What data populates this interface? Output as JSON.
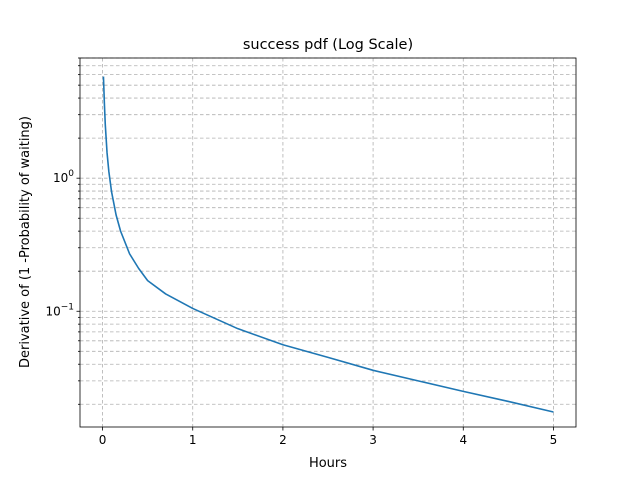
{
  "chart_data": {
    "type": "line",
    "title": "success pdf (Log Scale)",
    "xlabel": "Hours",
    "ylabel": "Derivative of (1 -Probability of waiting)",
    "xscale": "linear",
    "yscale": "log",
    "xlim": [
      -0.25,
      5.25
    ],
    "ylim": [
      0.0135,
      8.0
    ],
    "xticks": [
      0,
      1,
      2,
      3,
      4,
      5
    ],
    "xtick_labels": [
      "0",
      "1",
      "2",
      "3",
      "4",
      "5"
    ],
    "yticks_major": [
      0.1,
      1
    ],
    "grid": true,
    "legend": "none",
    "series": [
      {
        "color": "#1f77b4",
        "x": [
          0.01,
          0.02,
          0.03,
          0.05,
          0.07,
          0.1,
          0.15,
          0.2,
          0.3,
          0.4,
          0.5,
          0.7,
          1.0,
          1.5,
          2.0,
          2.5,
          3.0,
          3.5,
          4.0,
          4.5,
          5.0
        ],
        "y": [
          5.8,
          3.7,
          2.55,
          1.55,
          1.12,
          0.79,
          0.53,
          0.4,
          0.27,
          0.21,
          0.17,
          0.135,
          0.105,
          0.074,
          0.056,
          0.045,
          0.036,
          0.03,
          0.025,
          0.021,
          0.0175
        ]
      }
    ]
  }
}
